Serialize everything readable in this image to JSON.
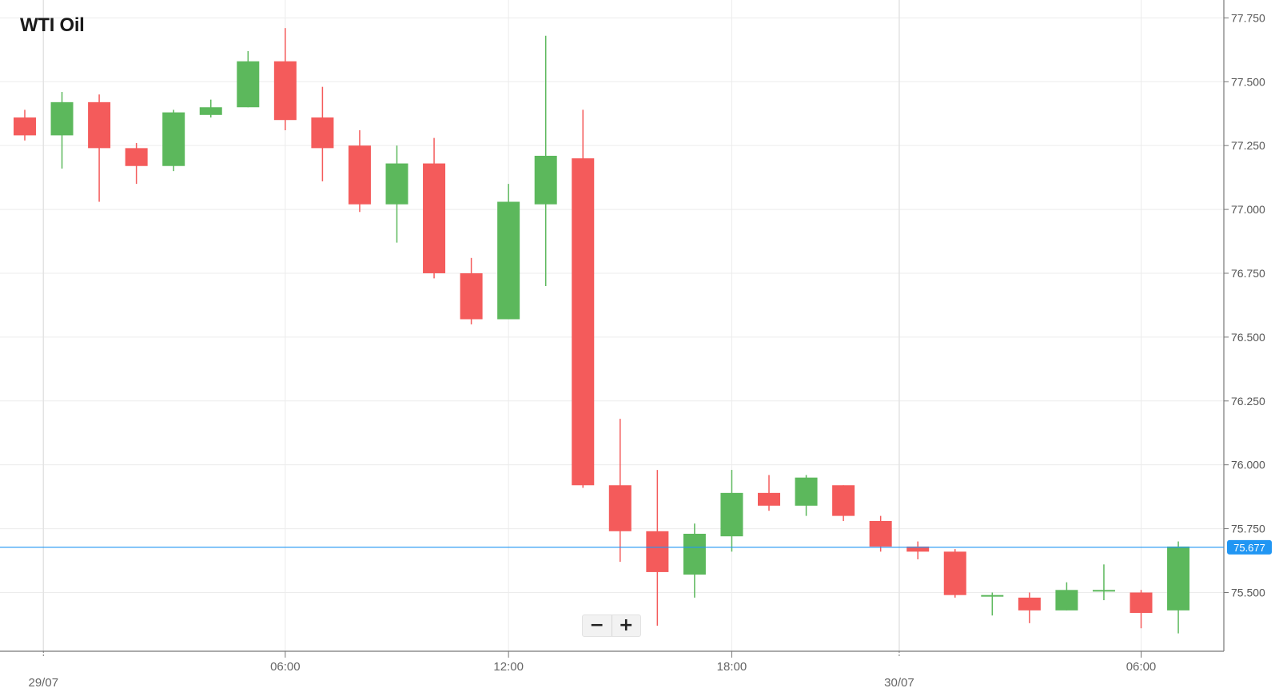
{
  "chart_data": {
    "type": "candlestick",
    "title": "WTI Oil",
    "ylim": [
      75.27,
      77.82
    ],
    "yticks": [
      "77.750",
      "77.500",
      "77.250",
      "77.000",
      "76.750",
      "76.500",
      "76.250",
      "76.000",
      "75.750",
      "75.500"
    ],
    "ytick_values": [
      77.75,
      77.5,
      77.25,
      77.0,
      76.75,
      76.5,
      76.25,
      76.0,
      75.75,
      75.5
    ],
    "xticks": [
      {
        "label": "29/07",
        "index": 0.5,
        "major": true
      },
      {
        "label": "06:00",
        "index": 7,
        "major": false
      },
      {
        "label": "12:00",
        "index": 13,
        "major": false
      },
      {
        "label": "18:00",
        "index": 19,
        "major": false
      },
      {
        "label": "30/07",
        "index": 23.5,
        "major": true
      },
      {
        "label": "06:00",
        "index": 30,
        "major": false
      }
    ],
    "current_price": {
      "value": 75.677,
      "label": "75.677"
    },
    "colors": {
      "up": "#5cb85c",
      "down": "#f45b5b",
      "price_line": "#2196f3",
      "grid": "#ececec",
      "axis": "#777777"
    },
    "candles": [
      {
        "o": 77.36,
        "h": 77.39,
        "l": 77.27,
        "c": 77.29
      },
      {
        "o": 77.29,
        "h": 77.46,
        "l": 77.16,
        "c": 77.42
      },
      {
        "o": 77.42,
        "h": 77.45,
        "l": 77.03,
        "c": 77.24
      },
      {
        "o": 77.24,
        "h": 77.26,
        "l": 77.1,
        "c": 77.17
      },
      {
        "o": 77.17,
        "h": 77.39,
        "l": 77.15,
        "c": 77.38
      },
      {
        "o": 77.37,
        "h": 77.43,
        "l": 77.36,
        "c": 77.4
      },
      {
        "o": 77.4,
        "h": 77.62,
        "l": 77.4,
        "c": 77.58
      },
      {
        "o": 77.58,
        "h": 77.71,
        "l": 77.31,
        "c": 77.35
      },
      {
        "o": 77.36,
        "h": 77.48,
        "l": 77.11,
        "c": 77.24
      },
      {
        "o": 77.25,
        "h": 77.31,
        "l": 76.99,
        "c": 77.02
      },
      {
        "o": 77.02,
        "h": 77.25,
        "l": 76.87,
        "c": 77.18
      },
      {
        "o": 77.18,
        "h": 77.28,
        "l": 76.73,
        "c": 76.75
      },
      {
        "o": 76.75,
        "h": 76.81,
        "l": 76.55,
        "c": 76.57
      },
      {
        "o": 76.57,
        "h": 77.1,
        "l": 76.57,
        "c": 77.03
      },
      {
        "o": 77.02,
        "h": 77.68,
        "l": 76.7,
        "c": 77.21
      },
      {
        "o": 77.2,
        "h": 77.39,
        "l": 75.91,
        "c": 75.92
      },
      {
        "o": 75.92,
        "h": 76.18,
        "l": 75.62,
        "c": 75.74
      },
      {
        "o": 75.74,
        "h": 75.98,
        "l": 75.37,
        "c": 75.58
      },
      {
        "o": 75.57,
        "h": 75.77,
        "l": 75.48,
        "c": 75.73
      },
      {
        "o": 75.72,
        "h": 75.98,
        "l": 75.66,
        "c": 75.89
      },
      {
        "o": 75.89,
        "h": 75.96,
        "l": 75.82,
        "c": 75.84
      },
      {
        "o": 75.84,
        "h": 75.96,
        "l": 75.8,
        "c": 75.95
      },
      {
        "o": 75.92,
        "h": 75.92,
        "l": 75.78,
        "c": 75.8
      },
      {
        "o": 75.78,
        "h": 75.8,
        "l": 75.66,
        "c": 75.68
      },
      {
        "o": 75.68,
        "h": 75.7,
        "l": 75.63,
        "c": 75.66
      },
      {
        "o": 75.66,
        "h": 75.67,
        "l": 75.48,
        "c": 75.49
      },
      {
        "o": 75.49,
        "h": 75.5,
        "l": 75.41,
        "c": 75.49
      },
      {
        "o": 75.48,
        "h": 75.5,
        "l": 75.38,
        "c": 75.43
      },
      {
        "o": 75.43,
        "h": 75.54,
        "l": 75.43,
        "c": 75.51
      },
      {
        "o": 75.51,
        "h": 75.61,
        "l": 75.47,
        "c": 75.51
      },
      {
        "o": 75.5,
        "h": 75.51,
        "l": 75.36,
        "c": 75.42
      },
      {
        "o": 75.43,
        "h": 75.7,
        "l": 75.34,
        "c": 75.68
      }
    ]
  },
  "zoom": {
    "out_label": "−",
    "in_label": "+"
  }
}
